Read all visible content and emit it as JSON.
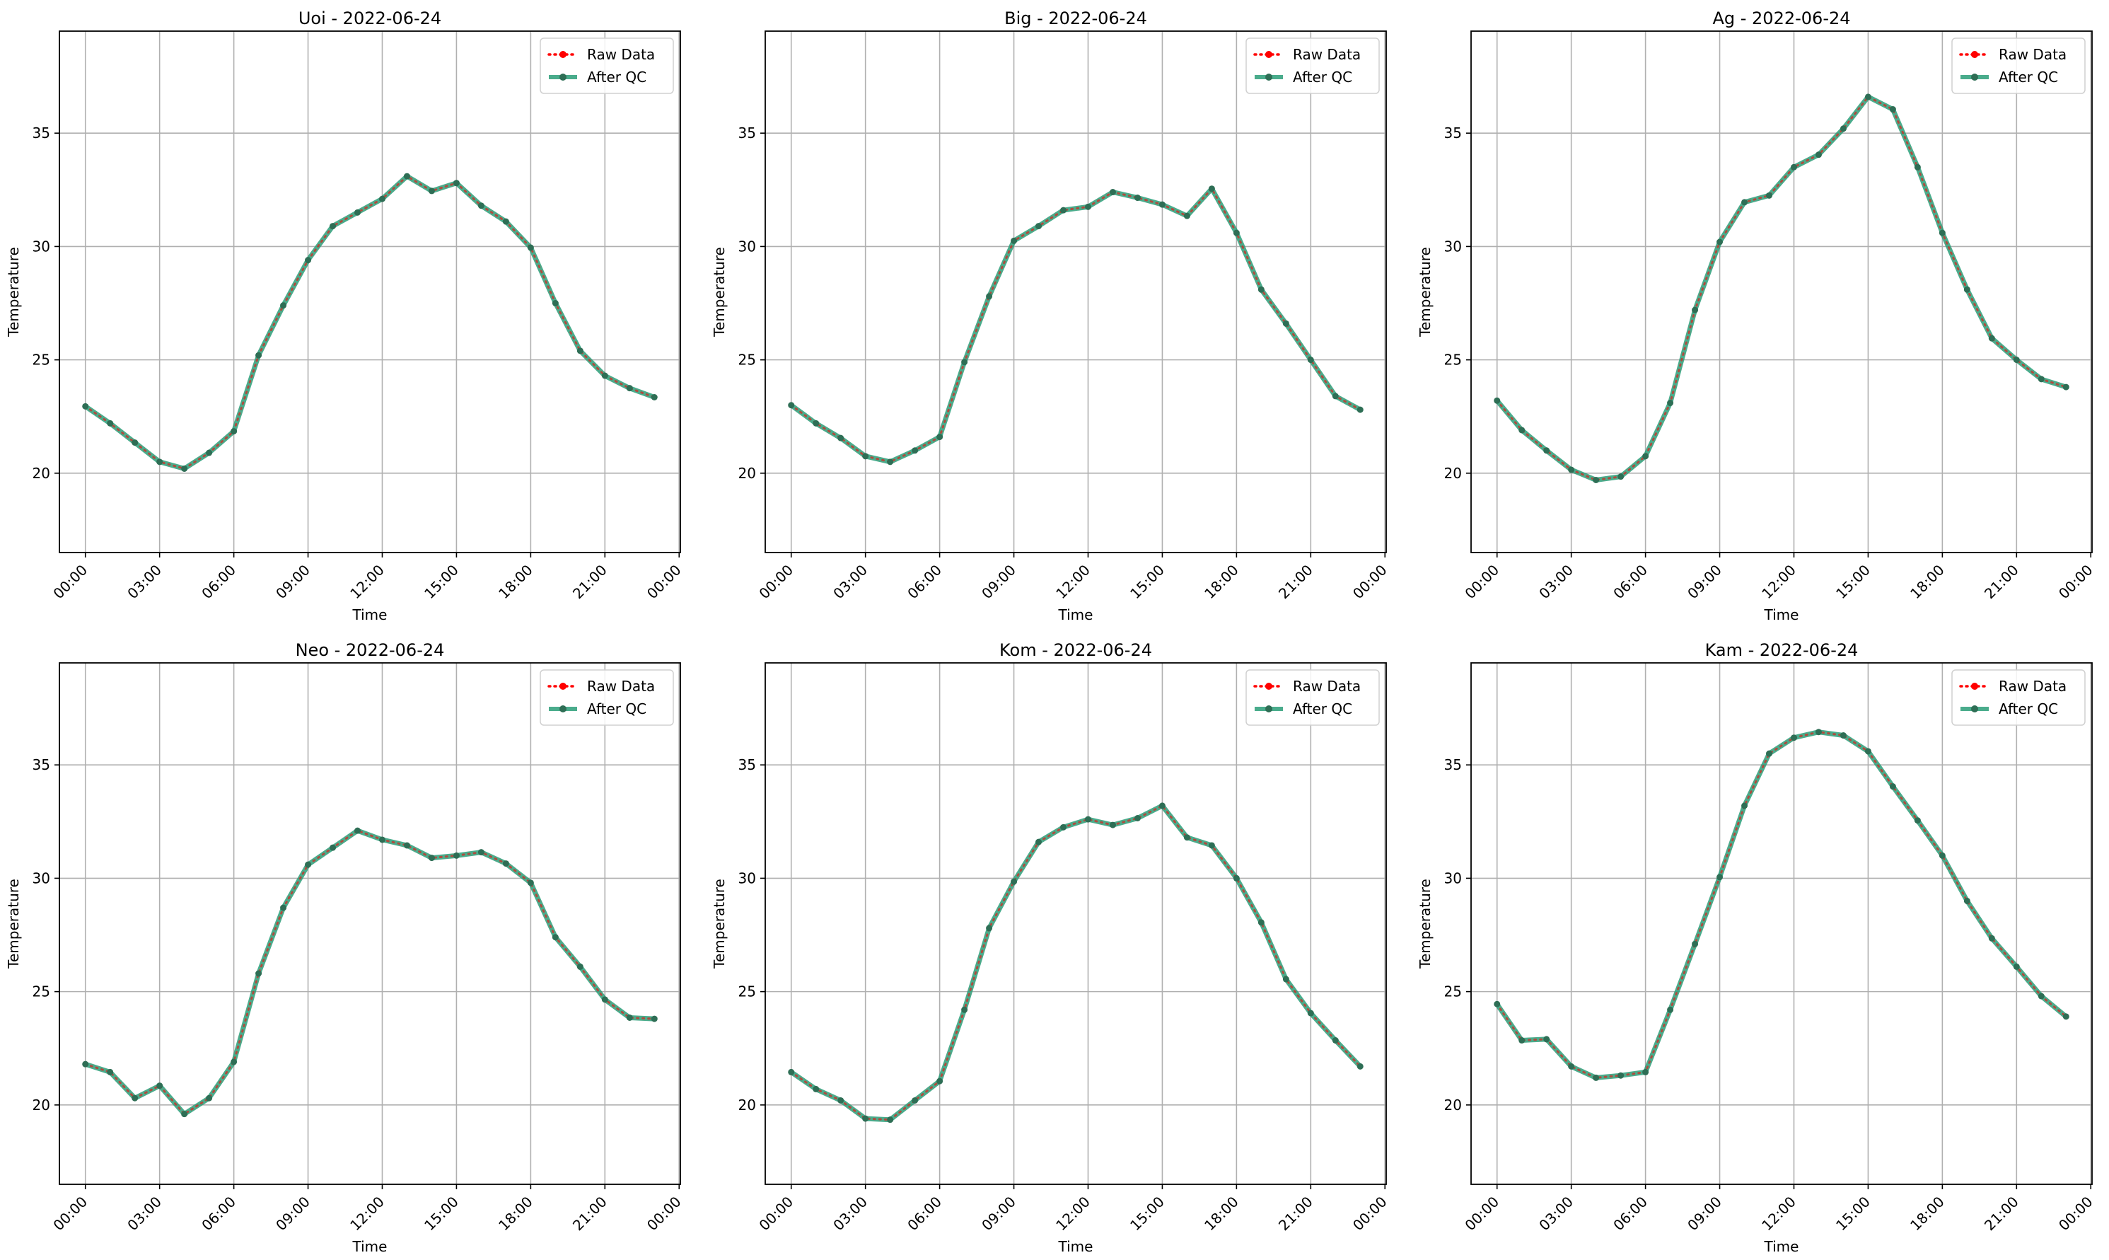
{
  "figure": {
    "colors": {
      "raw": "#ff0000",
      "qc": "#2a9d78",
      "qc_marker": "#2e6e55",
      "grid": "#b0b0b0",
      "axes": "#000000"
    },
    "legend_labels": {
      "raw": "Raw Data",
      "qc": "After QC"
    }
  },
  "chart_data": [
    {
      "type": "line",
      "title": "Uoi - 2022-06-24",
      "xlabel": "Time",
      "ylabel": "Temperature",
      "xlim": [
        -1.05,
        24.05
      ],
      "ylim": [
        16.5,
        39.5
      ],
      "x_ticks": [
        0,
        3,
        6,
        9,
        12,
        15,
        18,
        21,
        24
      ],
      "x_tick_labels": [
        "00:00",
        "03:00",
        "06:00",
        "09:00",
        "12:00",
        "15:00",
        "18:00",
        "21:00",
        "00:00"
      ],
      "y_ticks": [
        20,
        25,
        30,
        35
      ],
      "y_tick_labels": [
        "20",
        "25",
        "30",
        "35"
      ],
      "grid": true,
      "legend_position": "top-right",
      "x": [
        0,
        1,
        2,
        3,
        4,
        5,
        6,
        7,
        8,
        9,
        10,
        11,
        12,
        13,
        14,
        15,
        16,
        17,
        18,
        19,
        20,
        21,
        22,
        23
      ],
      "series": [
        {
          "name": "Raw Data",
          "values": [
            22.95,
            22.2,
            21.35,
            20.5,
            20.2,
            20.9,
            21.85,
            25.2,
            27.4,
            29.4,
            30.9,
            31.5,
            32.1,
            33.1,
            32.45,
            32.8,
            31.8,
            31.1,
            29.95,
            27.5,
            25.4,
            24.3,
            23.75,
            23.35
          ]
        },
        {
          "name": "After QC",
          "values": [
            22.95,
            22.2,
            21.35,
            20.5,
            20.2,
            20.9,
            21.85,
            25.2,
            27.4,
            29.4,
            30.9,
            31.5,
            32.1,
            33.1,
            32.45,
            32.8,
            31.8,
            31.1,
            29.95,
            27.5,
            25.4,
            24.3,
            23.75,
            23.35
          ]
        }
      ]
    },
    {
      "type": "line",
      "title": "Big - 2022-06-24",
      "xlabel": "Time",
      "ylabel": "Temperature",
      "xlim": [
        -1.05,
        24.05
      ],
      "ylim": [
        16.5,
        39.5
      ],
      "x_ticks": [
        0,
        3,
        6,
        9,
        12,
        15,
        18,
        21,
        24
      ],
      "x_tick_labels": [
        "00:00",
        "03:00",
        "06:00",
        "09:00",
        "12:00",
        "15:00",
        "18:00",
        "21:00",
        "00:00"
      ],
      "y_ticks": [
        20,
        25,
        30,
        35
      ],
      "y_tick_labels": [
        "20",
        "25",
        "30",
        "35"
      ],
      "grid": true,
      "legend_position": "top-right",
      "x": [
        0,
        1,
        2,
        3,
        4,
        5,
        6,
        7,
        8,
        9,
        10,
        11,
        12,
        13,
        14,
        15,
        16,
        17,
        18,
        19,
        20,
        21,
        22,
        23
      ],
      "series": [
        {
          "name": "Raw Data",
          "values": [
            23.0,
            22.2,
            21.55,
            20.75,
            20.5,
            21.0,
            21.6,
            24.9,
            27.8,
            30.25,
            30.9,
            31.6,
            31.75,
            32.4,
            32.15,
            31.85,
            31.35,
            32.55,
            30.6,
            28.1,
            26.6,
            25.0,
            23.4,
            22.8
          ]
        },
        {
          "name": "After QC",
          "values": [
            23.0,
            22.2,
            21.55,
            20.75,
            20.5,
            21.0,
            21.6,
            24.9,
            27.8,
            30.25,
            30.9,
            31.6,
            31.75,
            32.4,
            32.15,
            31.85,
            31.35,
            32.55,
            30.6,
            28.1,
            26.6,
            25.0,
            23.4,
            22.8
          ]
        }
      ]
    },
    {
      "type": "line",
      "title": "Ag - 2022-06-24",
      "xlabel": "Time",
      "ylabel": "Temperature",
      "xlim": [
        -1.05,
        24.05
      ],
      "ylim": [
        16.5,
        39.5
      ],
      "x_ticks": [
        0,
        3,
        6,
        9,
        12,
        15,
        18,
        21,
        24
      ],
      "x_tick_labels": [
        "00:00",
        "03:00",
        "06:00",
        "09:00",
        "12:00",
        "15:00",
        "18:00",
        "21:00",
        "00:00"
      ],
      "y_ticks": [
        20,
        25,
        30,
        35
      ],
      "y_tick_labels": [
        "20",
        "25",
        "30",
        "35"
      ],
      "grid": true,
      "legend_position": "top-right",
      "x": [
        0,
        1,
        2,
        3,
        4,
        5,
        6,
        7,
        8,
        9,
        10,
        11,
        12,
        13,
        14,
        15,
        16,
        17,
        18,
        19,
        20,
        21,
        22,
        23
      ],
      "series": [
        {
          "name": "Raw Data",
          "values": [
            23.2,
            21.9,
            21.0,
            20.15,
            19.7,
            19.85,
            20.75,
            23.1,
            27.2,
            30.2,
            31.95,
            32.25,
            33.5,
            34.05,
            35.2,
            36.6,
            36.05,
            33.5,
            30.6,
            28.1,
            25.95,
            25.0,
            24.15,
            23.8
          ]
        },
        {
          "name": "After QC",
          "values": [
            23.2,
            21.9,
            21.0,
            20.15,
            19.7,
            19.85,
            20.75,
            23.1,
            27.2,
            30.2,
            31.95,
            32.25,
            33.5,
            34.05,
            35.2,
            36.6,
            36.05,
            33.5,
            30.6,
            28.1,
            25.95,
            25.0,
            24.15,
            23.8
          ]
        }
      ]
    },
    {
      "type": "line",
      "title": "Neo - 2022-06-24",
      "xlabel": "Time",
      "ylabel": "Temperature",
      "xlim": [
        -1.05,
        24.05
      ],
      "ylim": [
        16.5,
        39.5
      ],
      "x_ticks": [
        0,
        3,
        6,
        9,
        12,
        15,
        18,
        21,
        24
      ],
      "x_tick_labels": [
        "00:00",
        "03:00",
        "06:00",
        "09:00",
        "12:00",
        "15:00",
        "18:00",
        "21:00",
        "00:00"
      ],
      "y_ticks": [
        20,
        25,
        30,
        35
      ],
      "y_tick_labels": [
        "20",
        "25",
        "30",
        "35"
      ],
      "grid": true,
      "legend_position": "top-right",
      "x": [
        0,
        1,
        2,
        3,
        4,
        5,
        6,
        7,
        8,
        9,
        10,
        11,
        12,
        13,
        14,
        15,
        16,
        17,
        18,
        19,
        20,
        21,
        22,
        23
      ],
      "series": [
        {
          "name": "Raw Data",
          "values": [
            21.8,
            21.45,
            20.3,
            20.85,
            19.6,
            20.3,
            21.9,
            25.8,
            28.7,
            30.6,
            31.35,
            32.1,
            31.7,
            31.45,
            30.9,
            31.0,
            31.15,
            30.65,
            29.8,
            27.4,
            26.1,
            24.65,
            23.85,
            23.8
          ]
        },
        {
          "name": "After QC",
          "values": [
            21.8,
            21.45,
            20.3,
            20.85,
            19.6,
            20.3,
            21.9,
            25.8,
            28.7,
            30.6,
            31.35,
            32.1,
            31.7,
            31.45,
            30.9,
            31.0,
            31.15,
            30.65,
            29.8,
            27.4,
            26.1,
            24.65,
            23.85,
            23.8
          ]
        }
      ]
    },
    {
      "type": "line",
      "title": "Kom - 2022-06-24",
      "xlabel": "Time",
      "ylabel": "Temperature",
      "xlim": [
        -1.05,
        24.05
      ],
      "ylim": [
        16.5,
        39.5
      ],
      "x_ticks": [
        0,
        3,
        6,
        9,
        12,
        15,
        18,
        21,
        24
      ],
      "x_tick_labels": [
        "00:00",
        "03:00",
        "06:00",
        "09:00",
        "12:00",
        "15:00",
        "18:00",
        "21:00",
        "00:00"
      ],
      "y_ticks": [
        20,
        25,
        30,
        35
      ],
      "y_tick_labels": [
        "20",
        "25",
        "30",
        "35"
      ],
      "grid": true,
      "legend_position": "top-right",
      "x": [
        0,
        1,
        2,
        3,
        4,
        5,
        6,
        7,
        8,
        9,
        10,
        11,
        12,
        13,
        14,
        15,
        16,
        17,
        18,
        19,
        20,
        21,
        22,
        23
      ],
      "series": [
        {
          "name": "Raw Data",
          "values": [
            21.45,
            20.7,
            20.2,
            19.4,
            19.35,
            20.2,
            21.05,
            24.2,
            27.8,
            29.85,
            31.6,
            32.25,
            32.6,
            32.35,
            32.65,
            33.2,
            31.8,
            31.45,
            30.0,
            28.05,
            25.55,
            24.05,
            22.85,
            21.7
          ]
        },
        {
          "name": "After QC",
          "values": [
            21.45,
            20.7,
            20.2,
            19.4,
            19.35,
            20.2,
            21.05,
            24.2,
            27.8,
            29.85,
            31.6,
            32.25,
            32.6,
            32.35,
            32.65,
            33.2,
            31.8,
            31.45,
            30.0,
            28.05,
            25.55,
            24.05,
            22.85,
            21.7
          ]
        }
      ]
    },
    {
      "type": "line",
      "title": "Kam - 2022-06-24",
      "xlabel": "Time",
      "ylabel": "Temperature",
      "xlim": [
        -1.05,
        24.05
      ],
      "ylim": [
        16.5,
        39.5
      ],
      "x_ticks": [
        0,
        3,
        6,
        9,
        12,
        15,
        18,
        21,
        24
      ],
      "x_tick_labels": [
        "00:00",
        "03:00",
        "06:00",
        "09:00",
        "12:00",
        "15:00",
        "18:00",
        "21:00",
        "00:00"
      ],
      "y_ticks": [
        20,
        25,
        30,
        35
      ],
      "y_tick_labels": [
        "20",
        "25",
        "30",
        "35"
      ],
      "grid": true,
      "legend_position": "top-right",
      "x": [
        0,
        1,
        2,
        3,
        4,
        5,
        6,
        7,
        8,
        9,
        10,
        11,
        12,
        13,
        14,
        15,
        16,
        17,
        18,
        19,
        20,
        21,
        22,
        23
      ],
      "series": [
        {
          "name": "Raw Data",
          "values": [
            24.45,
            22.85,
            22.9,
            21.7,
            21.2,
            21.3,
            21.45,
            24.2,
            27.1,
            30.05,
            33.2,
            35.5,
            36.2,
            36.45,
            36.3,
            35.6,
            34.05,
            32.55,
            31.0,
            29.0,
            27.35,
            26.1,
            24.8,
            23.9
          ]
        },
        {
          "name": "After QC",
          "values": [
            24.45,
            22.85,
            22.9,
            21.7,
            21.2,
            21.3,
            21.45,
            24.2,
            27.1,
            30.05,
            33.2,
            35.5,
            36.2,
            36.45,
            36.3,
            35.6,
            34.05,
            32.55,
            31.0,
            29.0,
            27.35,
            26.1,
            24.8,
            23.9
          ]
        }
      ]
    }
  ]
}
